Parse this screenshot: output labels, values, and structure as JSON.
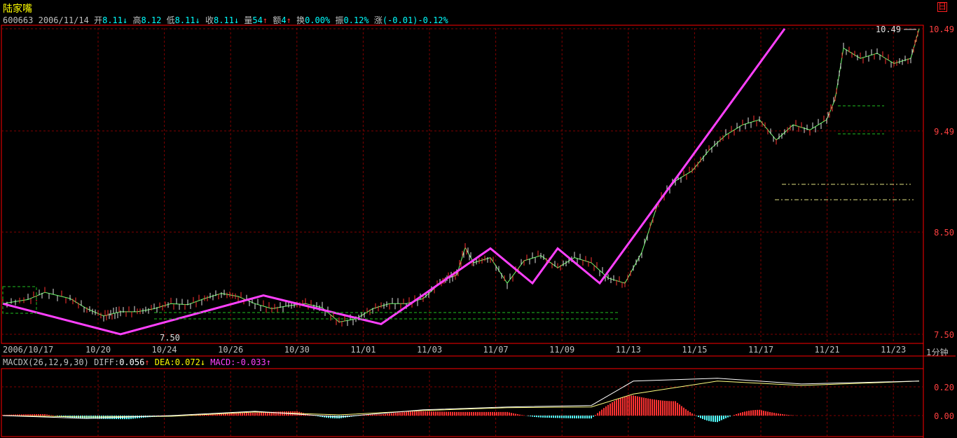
{
  "window": {
    "title": "陆家嘴",
    "corner_icon": "restore-icon",
    "corner_glyph": "日"
  },
  "info": {
    "code": "600663",
    "date": "2006/11/14",
    "fields": [
      {
        "label": "开",
        "value": "8.11",
        "arrow": "↓"
      },
      {
        "label": "高",
        "value": "8.12",
        "arrow": ""
      },
      {
        "label": "低",
        "value": "8.11",
        "arrow": "↓"
      },
      {
        "label": "收",
        "value": "8.11",
        "arrow": "↓"
      },
      {
        "label": "量",
        "value": "54",
        "arrow": "↑"
      },
      {
        "label": "额",
        "value": "4",
        "arrow": "↑"
      },
      {
        "label": "换",
        "value": "0.00%",
        "arrow": ""
      },
      {
        "label": "振",
        "value": "0.12%",
        "arrow": ""
      },
      {
        "label": "涨",
        "value": "(-0.01)-0.12%",
        "arrow": ""
      }
    ]
  },
  "macd_info": {
    "name": "MACDX(26,12,9,30)",
    "diff_label": "DIFF:",
    "diff": "0.056",
    "diff_arrow": "↑",
    "dea_label": "DEA:",
    "dea": "0.072",
    "dea_arrow": "↓",
    "macd_label": "MACD:",
    "macd": "-0.033",
    "macd_arrow": "↑"
  },
  "period_label": "1分钟",
  "colors": {
    "up": "#ff3232",
    "down": "#54ffff",
    "zigzag": "#ff40ff",
    "grid": "#800000",
    "axis": "#ff0000",
    "diff_line": "#ffffff",
    "dea_line": "#ffff80"
  },
  "chart_data": [
    {
      "type": "line",
      "subtype": "candlestick-intraday",
      "y_ticks": [
        7.5,
        8.5,
        9.49,
        10.49
      ],
      "ylim": [
        7.5,
        10.49
      ],
      "x_ticks": [
        "2006/10/17",
        "10/20",
        "10/24",
        "10/26",
        "10/30",
        "11/01",
        "11/03",
        "11/07",
        "11/09",
        "11/13",
        "11/15",
        "11/17",
        "11/21",
        "11/23"
      ],
      "annotations": {
        "high_label": "10.49",
        "low_label": "7.50"
      },
      "series": [
        {
          "points": [
            [
              0,
              7.8
            ],
            [
              3,
              7.84
            ],
            [
              5,
              7.91
            ],
            [
              8,
              7.85
            ],
            [
              10,
              7.75
            ],
            [
              12,
              7.68
            ],
            [
              13,
              7.7
            ],
            [
              14,
              7.72
            ],
            [
              16,
              7.72
            ],
            [
              18,
              7.75
            ],
            [
              20,
              7.8
            ],
            [
              22,
              7.79
            ],
            [
              24,
              7.85
            ],
            [
              26,
              7.9
            ],
            [
              28,
              7.87
            ],
            [
              30,
              7.8
            ],
            [
              32,
              7.75
            ],
            [
              34,
              7.78
            ],
            [
              36,
              7.8
            ],
            [
              38,
              7.76
            ],
            [
              40,
              7.62
            ],
            [
              42,
              7.65
            ],
            [
              44,
              7.75
            ],
            [
              46,
              7.8
            ],
            [
              48,
              7.8
            ],
            [
              50,
              7.85
            ],
            [
              52,
              8.0
            ],
            [
              53,
              8.05
            ],
            [
              54,
              8.08
            ],
            [
              55,
              8.35
            ],
            [
              56,
              8.2
            ],
            [
              58,
              8.25
            ],
            [
              60,
              8.0
            ],
            [
              62,
              8.22
            ],
            [
              64,
              8.27
            ],
            [
              66,
              8.15
            ],
            [
              68,
              8.25
            ],
            [
              70,
              8.2
            ],
            [
              72,
              8.05
            ],
            [
              74,
              8.0
            ],
            [
              76,
              8.3
            ],
            [
              78,
              8.8
            ],
            [
              80,
              9.0
            ],
            [
              82,
              9.1
            ],
            [
              84,
              9.3
            ],
            [
              86,
              9.45
            ],
            [
              88,
              9.55
            ],
            [
              90,
              9.6
            ],
            [
              92,
              9.4
            ],
            [
              94,
              9.55
            ],
            [
              96,
              9.5
            ],
            [
              98,
              9.6
            ],
            [
              99,
              9.8
            ],
            [
              100,
              10.3
            ],
            [
              102,
              10.2
            ],
            [
              104,
              10.25
            ],
            [
              106,
              10.15
            ],
            [
              108,
              10.2
            ],
            [
              109,
              10.49
            ]
          ]
        }
      ]
    },
    {
      "type": "zigzag",
      "points": [
        [
          0,
          7.8
        ],
        [
          14,
          7.5
        ],
        [
          31,
          7.88
        ],
        [
          45,
          7.6
        ],
        [
          58,
          8.34
        ],
        [
          63,
          8.0
        ],
        [
          66,
          8.34
        ],
        [
          71,
          8.0
        ],
        [
          93,
          10.49
        ]
      ]
    },
    {
      "type": "bar",
      "subtype": "macd",
      "y_ticks": [
        0.0,
        0.2
      ],
      "ylim": [
        -0.05,
        0.3
      ],
      "macd_bars": [
        [
          0,
          0.005
        ],
        [
          5,
          0.01
        ],
        [
          10,
          -0.02
        ],
        [
          15,
          -0.025
        ],
        [
          20,
          -0.005
        ],
        [
          25,
          0.01
        ],
        [
          30,
          0.02
        ],
        [
          35,
          0.03
        ],
        [
          40,
          -0.02
        ],
        [
          45,
          0.008
        ],
        [
          50,
          0.03
        ],
        [
          55,
          0.025
        ],
        [
          60,
          0.025
        ],
        [
          65,
          -0.015
        ],
        [
          70,
          -0.02
        ],
        [
          75,
          0.14
        ],
        [
          80,
          0.1
        ],
        [
          85,
          -0.045
        ],
        [
          90,
          0.04
        ],
        [
          95,
          0.0
        ]
      ],
      "diff_line": [
        [
          0,
          0.0
        ],
        [
          10,
          -0.02
        ],
        [
          20,
          0.0
        ],
        [
          30,
          0.03
        ],
        [
          40,
          -0.01
        ],
        [
          50,
          0.04
        ],
        [
          60,
          0.06
        ],
        [
          70,
          0.07
        ],
        [
          75,
          0.24
        ],
        [
          85,
          0.26
        ],
        [
          95,
          0.22
        ],
        [
          109,
          0.24
        ]
      ],
      "dea_line": [
        [
          0,
          0.0
        ],
        [
          10,
          -0.01
        ],
        [
          20,
          -0.005
        ],
        [
          30,
          0.025
        ],
        [
          40,
          0.005
        ],
        [
          50,
          0.035
        ],
        [
          60,
          0.055
        ],
        [
          70,
          0.06
        ],
        [
          75,
          0.15
        ],
        [
          85,
          0.24
        ],
        [
          95,
          0.21
        ],
        [
          109,
          0.24
        ]
      ]
    }
  ]
}
